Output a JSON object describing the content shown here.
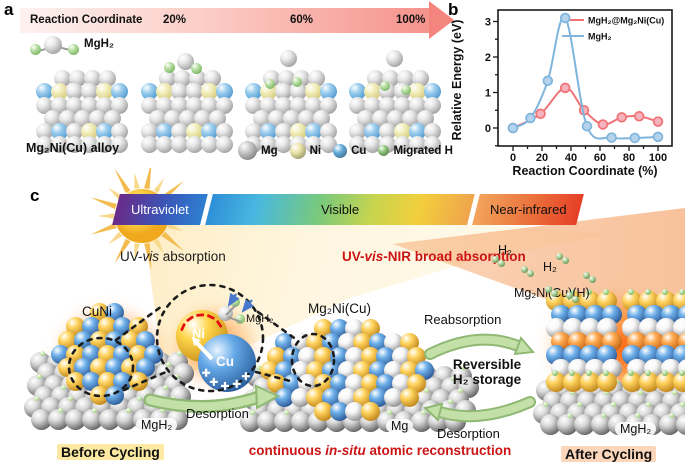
{
  "panel_a": {
    "label": "a",
    "arrow_title": "Reaction Coordinate",
    "arrow_ticks": [
      "20%",
      "60%",
      "100%"
    ],
    "mgh2_label": "MgH₂",
    "alloy_label": "Mg₂Ni(Cu) alloy",
    "legend": [
      {
        "name": "Mg",
        "color": "#c6c6c6"
      },
      {
        "name": "Ni",
        "color": "#e9e4a5"
      },
      {
        "name": "Cu",
        "color": "#66aede"
      },
      {
        "name": "Migrated H",
        "color": "#8fc97c"
      }
    ]
  },
  "panel_b": {
    "label": "b"
  },
  "chart_data": {
    "type": "line",
    "title": "",
    "xlabel": "Reaction Coordinate (%)",
    "ylabel": "Relative Energy (eV)",
    "xlim": [
      -12,
      112
    ],
    "ylim": [
      -0.55,
      3.45
    ],
    "xticks": [
      0,
      20,
      40,
      60,
      80,
      100
    ],
    "yticks": [
      0,
      1,
      2,
      3
    ],
    "x_minor_step": 10,
    "y_minor_step": 0.5,
    "grid": false,
    "legend_position": "top-right",
    "series": [
      {
        "name": "MgH₂@Mg₂Ni(Cu)",
        "color": "#ef7276",
        "marker_fill": "#f7b3bd",
        "x": [
          0,
          19,
          36,
          49,
          62,
          75,
          87,
          100
        ],
        "y": [
          0,
          0.4,
          1.13,
          0.5,
          0.1,
          0.3,
          0.33,
          0.18
        ]
      },
      {
        "name": "MgH₂",
        "color": "#7fb5dc",
        "marker_fill": "#b5d3ec",
        "x": [
          0,
          12,
          24,
          36,
          51,
          68,
          84,
          100
        ],
        "y": [
          0,
          0.28,
          1.33,
          3.1,
          0.05,
          -0.27,
          -0.28,
          -0.25
        ]
      }
    ]
  },
  "panel_c": {
    "label": "c",
    "spectrum_segments": [
      "Ultraviolet",
      "Visible",
      "Near-infrared"
    ],
    "uv_vis": {
      "pre": "UV-",
      "em": "vis",
      "post": " absorption"
    },
    "uv_vis_nir": {
      "pre": "UV-",
      "em": "vis",
      "post": "-NIR broad absorption"
    },
    "h2_label_1": "H₂",
    "h2_label_2": "H₂",
    "mg2nicuh_label": "Mg₂Ni(Cu)(H)",
    "cuni_label": "CuNi",
    "inset": {
      "ni": "Ni",
      "cu": "Cu",
      "mgh2": "MgH₂"
    },
    "mg2nicu_label": "Mg₂Ni(Cu)",
    "before_cycling": "Before Cycling",
    "after_cycling": "After Cycling",
    "slab_labels": {
      "left": "MgH₂",
      "center": "Mg",
      "right": "MgH₂"
    },
    "desorption_left": "Desorption",
    "reabsorption": "Reabsorption",
    "reversible": {
      "line1": "Reversible",
      "line2": "H₂ storage"
    },
    "desorption_right": "Desorption",
    "reconstruction": {
      "pre": "continuous ",
      "em": "in-situ",
      "post": " atomic reconstruction"
    },
    "accent_red": "#cb1414",
    "highlight_yellow": "#fce9a2",
    "highlight_peach": "#fbd6ba"
  }
}
